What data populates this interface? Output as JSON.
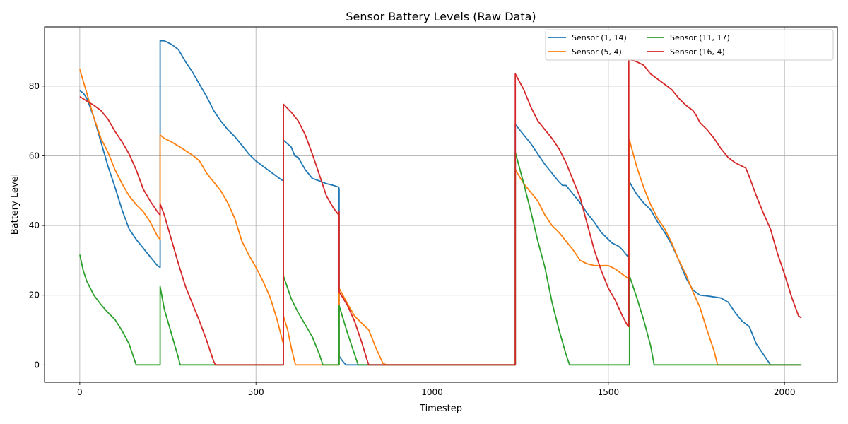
{
  "chart_data": {
    "type": "line",
    "title": "Sensor Battery Levels (Raw Data)",
    "xlabel": "Timestep",
    "ylabel": "Battery Level",
    "xlim": [
      -100,
      2150
    ],
    "ylim": [
      -5,
      97
    ],
    "xticks": [
      0,
      500,
      1000,
      1500,
      2000
    ],
    "yticks": [
      0,
      20,
      40,
      60,
      80
    ],
    "grid": true,
    "legend_position": "top-right",
    "series": [
      {
        "name": "Sensor (1, 14)",
        "color": "#1f77b4",
        "points": [
          [
            0,
            78.7
          ],
          [
            10,
            78
          ],
          [
            20,
            76.5
          ],
          [
            40,
            71
          ],
          [
            60,
            64
          ],
          [
            80,
            57
          ],
          [
            100,
            51
          ],
          [
            120,
            44.5
          ],
          [
            140,
            39
          ],
          [
            160,
            36
          ],
          [
            180,
            33.5
          ],
          [
            200,
            31
          ],
          [
            220,
            28.5
          ],
          [
            228,
            28
          ],
          [
            228,
            93
          ],
          [
            240,
            93
          ],
          [
            260,
            92
          ],
          [
            280,
            90.5
          ],
          [
            300,
            87
          ],
          [
            320,
            84
          ],
          [
            340,
            80.5
          ],
          [
            360,
            77
          ],
          [
            380,
            73
          ],
          [
            400,
            70
          ],
          [
            420,
            67.5
          ],
          [
            440,
            65.5
          ],
          [
            460,
            63
          ],
          [
            480,
            60.5
          ],
          [
            500,
            58.5
          ],
          [
            520,
            57
          ],
          [
            540,
            55.5
          ],
          [
            560,
            54
          ],
          [
            574,
            53
          ],
          [
            578,
            53
          ],
          [
            578,
            64.5
          ],
          [
            600,
            62.5
          ],
          [
            610,
            60
          ],
          [
            620,
            59.5
          ],
          [
            640,
            56
          ],
          [
            660,
            53.5
          ],
          [
            680,
            52.8
          ],
          [
            700,
            52
          ],
          [
            720,
            51.5
          ],
          [
            735,
            51
          ],
          [
            736,
            50.5
          ],
          [
            736,
            2.5
          ],
          [
            745,
            1.2
          ],
          [
            755,
            0
          ],
          [
            780,
            0
          ],
          [
            800,
            0
          ],
          [
            1000,
            0
          ],
          [
            1235,
            0
          ],
          [
            1236,
            0
          ],
          [
            1236,
            69
          ],
          [
            1260,
            66
          ],
          [
            1280,
            63.5
          ],
          [
            1300,
            60.5
          ],
          [
            1320,
            57.5
          ],
          [
            1340,
            55
          ],
          [
            1360,
            52.5
          ],
          [
            1370,
            51.5
          ],
          [
            1380,
            51.5
          ],
          [
            1400,
            49
          ],
          [
            1420,
            46.5
          ],
          [
            1440,
            43.5
          ],
          [
            1460,
            41
          ],
          [
            1480,
            38
          ],
          [
            1500,
            36
          ],
          [
            1510,
            35
          ],
          [
            1520,
            34.5
          ],
          [
            1530,
            34
          ],
          [
            1540,
            33
          ],
          [
            1560,
            30.5
          ],
          [
            1560,
            52.5
          ],
          [
            1580,
            49
          ],
          [
            1600,
            46.5
          ],
          [
            1620,
            44.5
          ],
          [
            1640,
            41
          ],
          [
            1660,
            38
          ],
          [
            1680,
            34.5
          ],
          [
            1700,
            30
          ],
          [
            1720,
            25
          ],
          [
            1740,
            21.5
          ],
          [
            1760,
            20
          ],
          [
            1780,
            19.8
          ],
          [
            1800,
            19.5
          ],
          [
            1820,
            19.2
          ],
          [
            1840,
            18
          ],
          [
            1860,
            15
          ],
          [
            1880,
            12.5
          ],
          [
            1900,
            11
          ],
          [
            1920,
            6
          ],
          [
            1940,
            3
          ],
          [
            1960,
            0
          ],
          [
            2000,
            0
          ],
          [
            2048,
            0
          ]
        ]
      },
      {
        "name": "Sensor (5, 4)",
        "color": "#ff7f0e",
        "points": [
          [
            0,
            84.8
          ],
          [
            20,
            78
          ],
          [
            40,
            71
          ],
          [
            60,
            65
          ],
          [
            80,
            61
          ],
          [
            100,
            56
          ],
          [
            120,
            52
          ],
          [
            140,
            48.5
          ],
          [
            160,
            46
          ],
          [
            180,
            44
          ],
          [
            200,
            41
          ],
          [
            220,
            37
          ],
          [
            228,
            36
          ],
          [
            228,
            66
          ],
          [
            240,
            65
          ],
          [
            260,
            64
          ],
          [
            280,
            62.8
          ],
          [
            300,
            61.5
          ],
          [
            320,
            60.2
          ],
          [
            340,
            58.5
          ],
          [
            360,
            55
          ],
          [
            380,
            52.5
          ],
          [
            400,
            50
          ],
          [
            420,
            46.5
          ],
          [
            440,
            42
          ],
          [
            460,
            35.5
          ],
          [
            480,
            31.5
          ],
          [
            500,
            28
          ],
          [
            520,
            24
          ],
          [
            540,
            19.5
          ],
          [
            560,
            13
          ],
          [
            575,
            7
          ],
          [
            578,
            6
          ],
          [
            578,
            14
          ],
          [
            590,
            10
          ],
          [
            600,
            5
          ],
          [
            612,
            0
          ],
          [
            640,
            0
          ],
          [
            700,
            0
          ],
          [
            736,
            0
          ],
          [
            736,
            22
          ],
          [
            760,
            17.5
          ],
          [
            780,
            14
          ],
          [
            800,
            12
          ],
          [
            820,
            10
          ],
          [
            840,
            5
          ],
          [
            860,
            0.5
          ],
          [
            870,
            0
          ],
          [
            1000,
            0
          ],
          [
            1236,
            0
          ],
          [
            1236,
            56
          ],
          [
            1260,
            52
          ],
          [
            1280,
            49.5
          ],
          [
            1300,
            47
          ],
          [
            1320,
            43
          ],
          [
            1340,
            40
          ],
          [
            1360,
            38
          ],
          [
            1380,
            35.5
          ],
          [
            1400,
            33
          ],
          [
            1420,
            30
          ],
          [
            1440,
            29
          ],
          [
            1460,
            28.5
          ],
          [
            1500,
            28.5
          ],
          [
            1520,
            27.5
          ],
          [
            1540,
            26
          ],
          [
            1560,
            24.5
          ],
          [
            1560,
            64.5
          ],
          [
            1580,
            57
          ],
          [
            1600,
            51
          ],
          [
            1620,
            46
          ],
          [
            1640,
            42
          ],
          [
            1660,
            39
          ],
          [
            1680,
            35
          ],
          [
            1700,
            30
          ],
          [
            1720,
            26
          ],
          [
            1740,
            21
          ],
          [
            1760,
            16.5
          ],
          [
            1780,
            10
          ],
          [
            1800,
            4
          ],
          [
            1810,
            0
          ],
          [
            1900,
            0
          ],
          [
            2048,
            0
          ]
        ]
      },
      {
        "name": "Sensor (11, 17)",
        "color": "#2ca02c",
        "points": [
          [
            0,
            31.6
          ],
          [
            10,
            27
          ],
          [
            20,
            24
          ],
          [
            40,
            20
          ],
          [
            60,
            17.3
          ],
          [
            80,
            15
          ],
          [
            100,
            13
          ],
          [
            120,
            9.8
          ],
          [
            140,
            6
          ],
          [
            150,
            3
          ],
          [
            160,
            0
          ],
          [
            200,
            0
          ],
          [
            228,
            0
          ],
          [
            228,
            22.5
          ],
          [
            240,
            16
          ],
          [
            260,
            9
          ],
          [
            280,
            2
          ],
          [
            285,
            0
          ],
          [
            300,
            0
          ],
          [
            400,
            0
          ],
          [
            578,
            0
          ],
          [
            578,
            25.5
          ],
          [
            600,
            19
          ],
          [
            620,
            15
          ],
          [
            640,
            11.5
          ],
          [
            660,
            8
          ],
          [
            680,
            3
          ],
          [
            690,
            0
          ],
          [
            736,
            0
          ],
          [
            736,
            17
          ],
          [
            760,
            9
          ],
          [
            780,
            3
          ],
          [
            790,
            0
          ],
          [
            800,
            0
          ],
          [
            1000,
            0
          ],
          [
            1236,
            0
          ],
          [
            1236,
            61
          ],
          [
            1260,
            52
          ],
          [
            1280,
            44
          ],
          [
            1300,
            35.5
          ],
          [
            1320,
            28
          ],
          [
            1340,
            18
          ],
          [
            1360,
            10
          ],
          [
            1380,
            3
          ],
          [
            1390,
            0
          ],
          [
            1400,
            0
          ],
          [
            1500,
            0
          ],
          [
            1560,
            0
          ],
          [
            1560,
            25.5
          ],
          [
            1580,
            19.5
          ],
          [
            1600,
            13
          ],
          [
            1620,
            5.5
          ],
          [
            1630,
            0
          ],
          [
            1700,
            0
          ],
          [
            2048,
            0
          ]
        ]
      },
      {
        "name": "Sensor (16, 4)",
        "color": "#d62728",
        "points": [
          [
            0,
            77
          ],
          [
            20,
            75.7
          ],
          [
            40,
            74.5
          ],
          [
            60,
            73
          ],
          [
            80,
            70.5
          ],
          [
            100,
            67
          ],
          [
            120,
            64
          ],
          [
            140,
            60.5
          ],
          [
            160,
            56
          ],
          [
            180,
            50.5
          ],
          [
            200,
            47
          ],
          [
            220,
            44
          ],
          [
            228,
            43
          ],
          [
            228,
            46.2
          ],
          [
            240,
            43
          ],
          [
            260,
            36
          ],
          [
            280,
            29
          ],
          [
            300,
            22.5
          ],
          [
            320,
            17.5
          ],
          [
            340,
            12.5
          ],
          [
            360,
            7
          ],
          [
            380,
            1
          ],
          [
            385,
            0
          ],
          [
            400,
            0
          ],
          [
            500,
            0
          ],
          [
            578,
            0
          ],
          [
            578,
            74.8
          ],
          [
            600,
            72.5
          ],
          [
            620,
            70
          ],
          [
            640,
            66
          ],
          [
            660,
            60.5
          ],
          [
            680,
            54.5
          ],
          [
            700,
            48.5
          ],
          [
            720,
            45
          ],
          [
            735,
            43
          ],
          [
            736,
            44
          ],
          [
            736,
            21
          ],
          [
            760,
            17
          ],
          [
            780,
            12.5
          ],
          [
            800,
            6.5
          ],
          [
            815,
            1.5
          ],
          [
            820,
            0
          ],
          [
            900,
            0
          ],
          [
            1000,
            0
          ],
          [
            1236,
            0
          ],
          [
            1236,
            83.5
          ],
          [
            1260,
            79
          ],
          [
            1280,
            74
          ],
          [
            1300,
            70
          ],
          [
            1320,
            67.5
          ],
          [
            1340,
            65
          ],
          [
            1360,
            62
          ],
          [
            1380,
            58
          ],
          [
            1400,
            53
          ],
          [
            1420,
            48
          ],
          [
            1440,
            40.5
          ],
          [
            1460,
            33
          ],
          [
            1480,
            27
          ],
          [
            1500,
            22
          ],
          [
            1520,
            18.5
          ],
          [
            1540,
            14
          ],
          [
            1556,
            11
          ],
          [
            1558,
            11
          ],
          [
            1558,
            87.8
          ],
          [
            1570,
            87.3
          ],
          [
            1580,
            87
          ],
          [
            1600,
            86
          ],
          [
            1620,
            83.5
          ],
          [
            1640,
            82
          ],
          [
            1660,
            80.5
          ],
          [
            1680,
            79
          ],
          [
            1700,
            76.5
          ],
          [
            1720,
            74.5
          ],
          [
            1740,
            73
          ],
          [
            1750,
            71.5
          ],
          [
            1760,
            69.5
          ],
          [
            1780,
            67.5
          ],
          [
            1800,
            65
          ],
          [
            1820,
            62
          ],
          [
            1840,
            59.5
          ],
          [
            1860,
            58
          ],
          [
            1880,
            57
          ],
          [
            1890,
            56.5
          ],
          [
            1900,
            54
          ],
          [
            1920,
            48.5
          ],
          [
            1940,
            43.5
          ],
          [
            1960,
            39
          ],
          [
            1980,
            32
          ],
          [
            2000,
            26
          ],
          [
            2020,
            19.5
          ],
          [
            2040,
            14
          ],
          [
            2048,
            13.5
          ]
        ]
      }
    ]
  }
}
